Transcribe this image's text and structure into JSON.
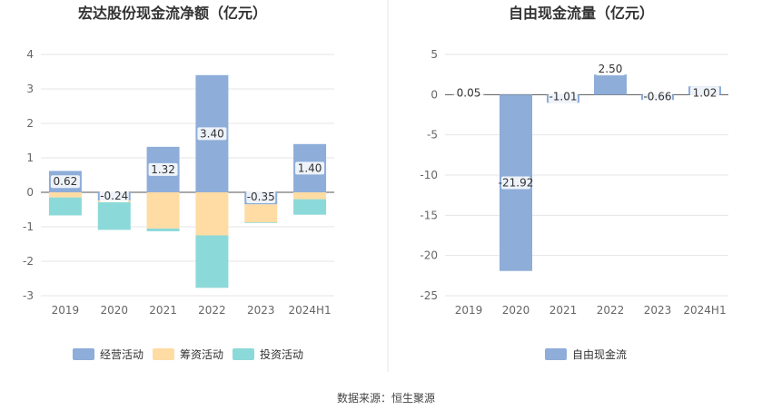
{
  "source": "数据来源：恒生聚源",
  "chart_data": [
    {
      "type": "bar",
      "stacked": true,
      "title": "宏达股份现金流净额（亿元）",
      "categories": [
        "2019",
        "2020",
        "2021",
        "2022",
        "2023",
        "2024H1"
      ],
      "ylim": [
        -3,
        4
      ],
      "yticks": [
        -3,
        -2,
        -1,
        0,
        1,
        2,
        3,
        4
      ],
      "grid": true,
      "legend_position": "bottom",
      "series": [
        {
          "name": "经营活动",
          "color": "#8eadd9",
          "values": [
            0.62,
            -0.24,
            1.32,
            3.4,
            -0.35,
            1.4
          ],
          "labels": [
            "0.62",
            "-0.24",
            "1.32",
            "3.40",
            "-0.35",
            "1.40"
          ]
        },
        {
          "name": "筹资活动",
          "color": "#ffdca3",
          "values": [
            -0.15,
            -0.05,
            -1.05,
            -1.25,
            -0.52,
            -0.2
          ]
        },
        {
          "name": "投资活动",
          "color": "#8cd9d9",
          "values": [
            -0.52,
            -0.8,
            -0.08,
            -1.52,
            -0.02,
            -0.45
          ]
        }
      ]
    },
    {
      "type": "bar",
      "title": "自由现金流量（亿元）",
      "categories": [
        "2019",
        "2020",
        "2021",
        "2022",
        "2023",
        "2024H1"
      ],
      "ylim": [
        -25,
        5
      ],
      "yticks": [
        -25,
        -20,
        -15,
        -10,
        -5,
        0,
        5
      ],
      "grid": true,
      "legend_position": "bottom",
      "series": [
        {
          "name": "自由现金流",
          "color": "#8eadd9",
          "values": [
            0.05,
            -21.92,
            -1.01,
            2.5,
            -0.66,
            1.02
          ],
          "labels": [
            "0.05",
            "-21.92",
            "-1.01",
            "2.50",
            "-0.66",
            "1.02"
          ]
        }
      ]
    }
  ]
}
